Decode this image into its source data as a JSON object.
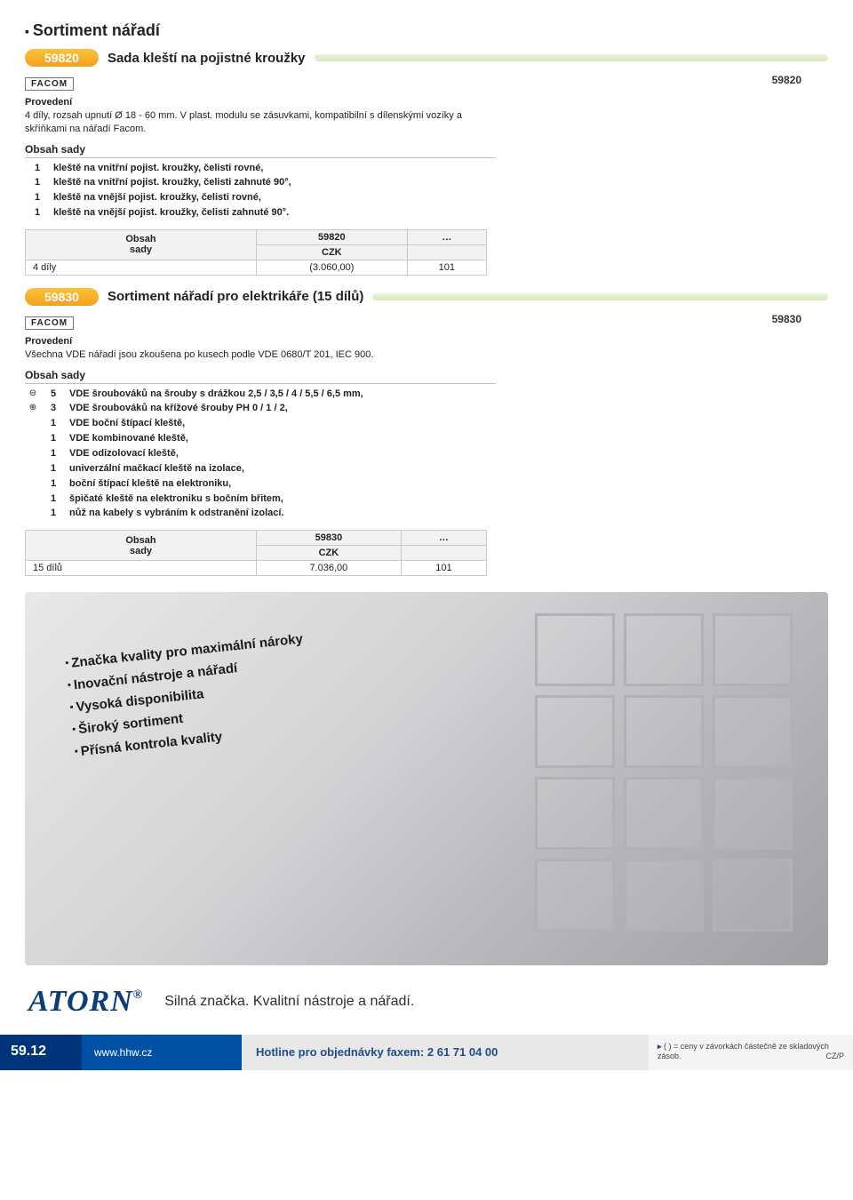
{
  "page_title": "Sortiment nářadí",
  "product1": {
    "code": "59820",
    "ref_right": "59820",
    "name": "Sada kleští na pojistné kroužky",
    "brand": "FACOM",
    "prov_head": "Provedení",
    "prov_text": "4 díly, rozsah upnutí Ø 18 - 60 mm. V plast. modulu se zásuvkami, kompatibilní s dílenskými vozíky a skříňkami na nářadí Facom.",
    "contents_head": "Obsah sady",
    "rows": [
      {
        "q": "1",
        "t": "kleště na vnitřní pojist. kroužky, čelisti rovné,"
      },
      {
        "q": "1",
        "t": "kleště na vnitřní pojist. kroužky, čelisti zahnuté 90°,"
      },
      {
        "q": "1",
        "t": "kleště na vnější pojist. kroužky, čelisti rovné,"
      },
      {
        "q": "1",
        "t": "kleště na vnější pojist. kroužky, čelisti zahnuté 90°."
      }
    ],
    "tbl_h1": "Obsah",
    "tbl_h2": "sady",
    "tbl_code": "59820",
    "tbl_dots": "…",
    "tbl_cur": "CZK",
    "tbl_row": "4 díly",
    "tbl_price": "(3.060,00)",
    "tbl_ref": "101"
  },
  "product2": {
    "code": "59830",
    "ref_right": "59830",
    "name": "Sortiment nářadí pro elektrikáře (15 dílů)",
    "brand": "FACOM",
    "prov_head": "Provedení",
    "prov_text": "Všechna VDE nářadí jsou zkoušena po kusech podle VDE 0680/T 201, IEC 900.",
    "contents_head": "Obsah sady",
    "rows": [
      {
        "s": "⊖",
        "q": "5",
        "t": "VDE šroubováků na šrouby s drážkou 2,5 / 3,5 / 4 / 5,5 / 6,5 mm,"
      },
      {
        "s": "⊕",
        "q": "3",
        "t": "VDE šroubováků na křížové šrouby PH 0 / 1 / 2,"
      },
      {
        "s": "",
        "q": "1",
        "t": "VDE boční štípací kleště,"
      },
      {
        "s": "",
        "q": "1",
        "t": "VDE kombinované kleště,"
      },
      {
        "s": "",
        "q": "1",
        "t": "VDE odizolovací kleště,"
      },
      {
        "s": "",
        "q": "1",
        "t": "univerzální mačkací kleště na izolace,"
      },
      {
        "s": "",
        "q": "1",
        "t": "boční štípací kleště na elektroniku,"
      },
      {
        "s": "",
        "q": "1",
        "t": "špičaté kleště na elektroniku s bočním břitem,"
      },
      {
        "s": "",
        "q": "1",
        "t": "nůž na kabely s vybráním k odstranění izolací."
      }
    ],
    "tbl_h1": "Obsah",
    "tbl_h2": "sady",
    "tbl_code": "59830",
    "tbl_dots": "…",
    "tbl_cur": "CZK",
    "tbl_row": "15 dílů",
    "tbl_price": "7.036,00",
    "tbl_ref": "101"
  },
  "promo": {
    "b1": "Značka kvality pro maximální nároky",
    "b2": "Inovační nástroje a nářadí",
    "b3": "Vysoká disponibilita",
    "b4": "Široký sortiment",
    "b5": "Přísná kontrola kvality"
  },
  "atorn": {
    "logo": "ATORN",
    "reg": "®",
    "tagline": "Silná značka. Kvalitní nástroje a nářadí."
  },
  "footer": {
    "page": "59.12",
    "url": "www.hhw.cz",
    "hotline": "Hotline pro objednávky faxem: 2 61 71 04 00",
    "note": "( ) = ceny v závorkách částečně ze skladových zásob.",
    "tag": "CZ/P"
  },
  "colors": {
    "pill_bg": "#f6a11a",
    "bar_bg": "#d6e9bb",
    "footer_dark": "#00347a",
    "footer_mid": "#0050a5",
    "atorn": "#0b3d78"
  }
}
